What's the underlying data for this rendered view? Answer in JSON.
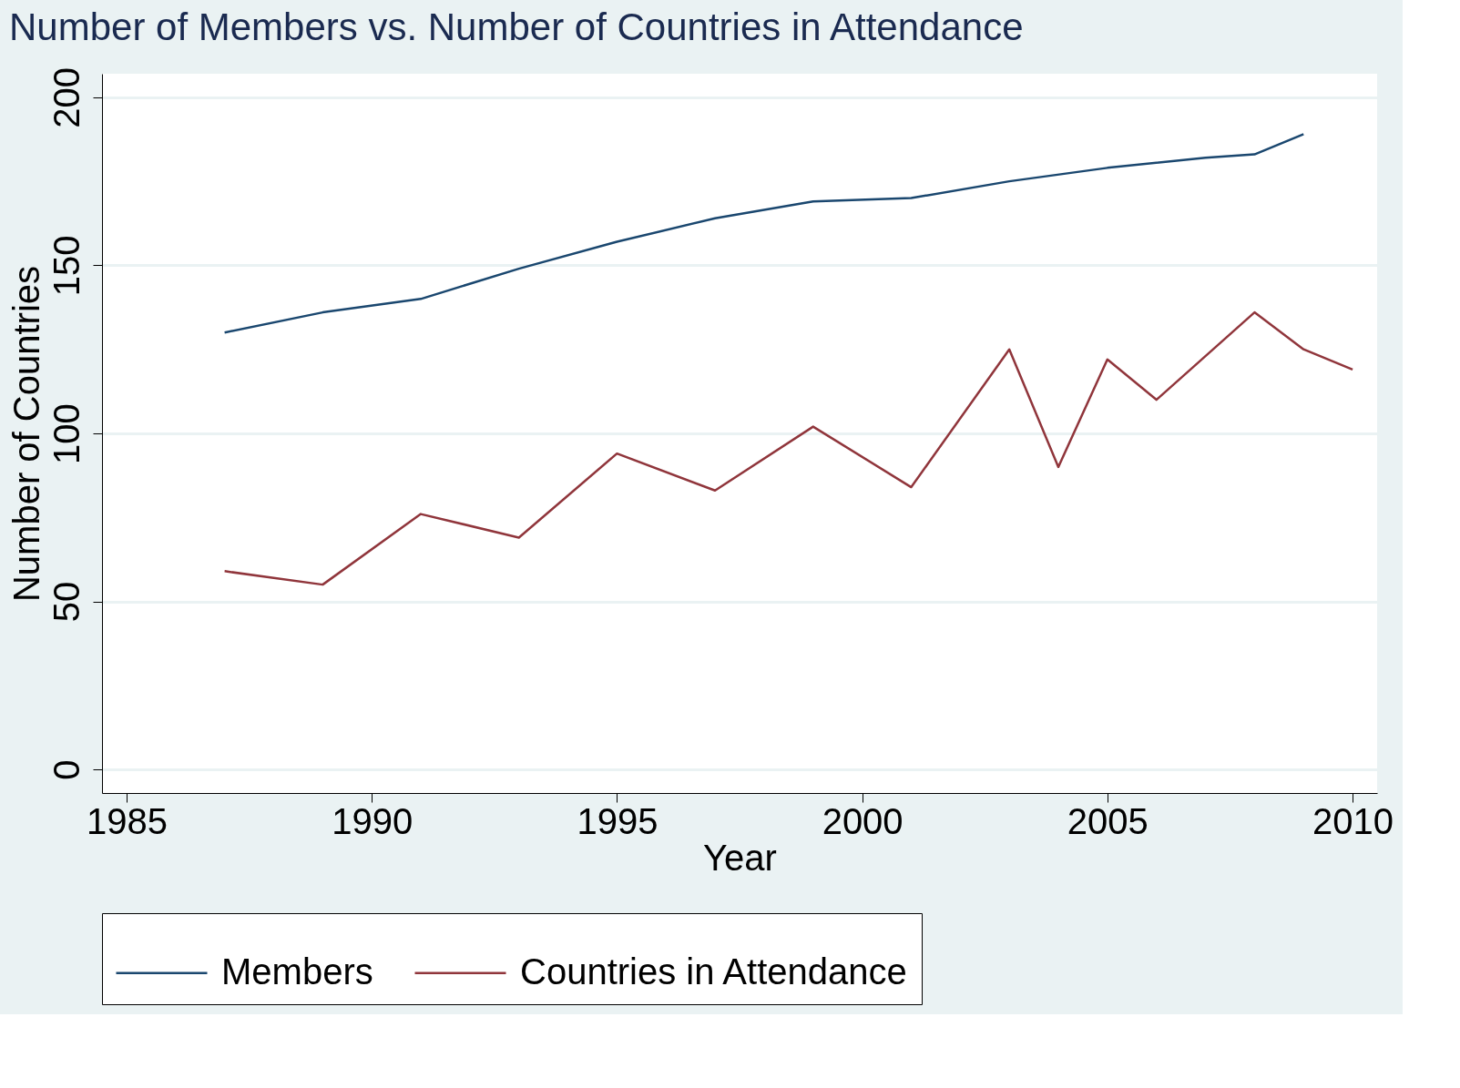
{
  "chart_data": {
    "type": "line",
    "title": "Number of Members vs. Number of Countries in Attendance",
    "xlabel": "Year",
    "ylabel": "Number of Countries",
    "series": [
      {
        "name": "Members",
        "color": "#1a476f",
        "x": [
          1987,
          1989,
          1991,
          1993,
          1995,
          1997,
          1999,
          2001,
          2003,
          2005,
          2007,
          2008,
          2009
        ],
        "values": [
          130,
          136,
          140,
          149,
          157,
          164,
          169,
          170,
          175,
          179,
          182,
          183,
          189
        ]
      },
      {
        "name": "Countries in Attendance",
        "color": "#90353b",
        "x": [
          1987,
          1989,
          1991,
          1993,
          1995,
          1997,
          1999,
          2001,
          2003,
          2004,
          2005,
          2006,
          2008,
          2009,
          2010
        ],
        "values": [
          59,
          55,
          76,
          69,
          94,
          83,
          102,
          84,
          125,
          90,
          122,
          110,
          136,
          125,
          119
        ]
      }
    ],
    "xlim": [
      1984.5,
      2010.5
    ],
    "xticks": [
      1985,
      1990,
      1995,
      2000,
      2005,
      2010
    ],
    "ylim": [
      -7,
      207
    ],
    "yticks": [
      0,
      50,
      100,
      150,
      200
    ],
    "grid": "y",
    "legend": "bottom",
    "marker": "none",
    "line_style": "solid"
  }
}
